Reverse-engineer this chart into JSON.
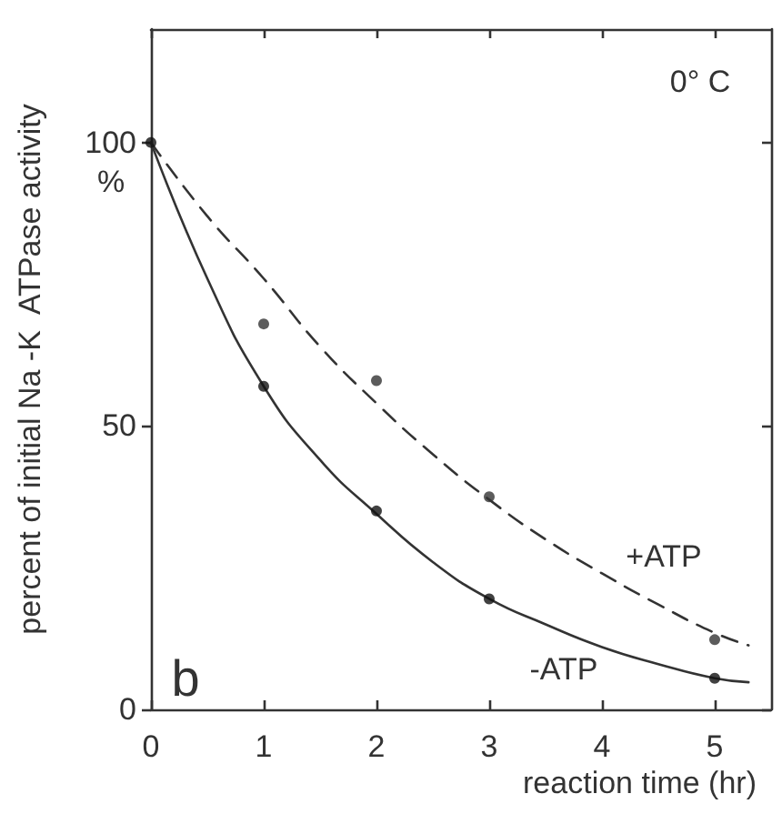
{
  "chart_data": {
    "type": "scatter",
    "xlabel": "reaction time (hr)",
    "ylabel": "percent of initial Na -K  ATPase activity",
    "annotations": [
      "%",
      "0° C",
      "b",
      "+ATP",
      "-ATP"
    ],
    "series": [
      {
        "type": "line",
        "color": "#333333",
        "line_style": "solid",
        "marker": "none",
        "x": [
          0,
          0.5,
          1,
          1.5,
          2,
          2.5,
          3,
          3.5,
          4,
          4.5,
          5,
          5.3
        ],
        "values": [
          100,
          76,
          57,
          44,
          34.5,
          26,
          19.5,
          15,
          11,
          8,
          5.5,
          4.8
        ]
      },
      {
        "type": "line",
        "color": "#333333",
        "line_style": "dashed",
        "marker": "none",
        "x": [
          0,
          0.5,
          1,
          1.5,
          2,
          2.5,
          3,
          3.5,
          4,
          4.5,
          5,
          5.3
        ],
        "values": [
          100,
          87,
          76,
          64,
          54,
          45,
          37,
          30,
          24,
          18.5,
          13.5,
          11.3
        ]
      },
      {
        "color": "#111111",
        "marker": "circle",
        "x": [
          0,
          1,
          2,
          3,
          5
        ],
        "values": [
          100,
          57,
          35,
          19.5,
          5.5
        ]
      },
      {
        "color": "#333333",
        "marker": "circle",
        "x": [
          1,
          2,
          3,
          5
        ],
        "values": [
          68,
          58,
          37.5,
          12.3
        ]
      }
    ],
    "xlim": [
      0,
      5.5
    ],
    "xticks": [
      0,
      1,
      2,
      3,
      4,
      5
    ],
    "ylim": [
      0,
      120
    ],
    "yticks": [
      0,
      50,
      100
    ],
    "grid": false
  }
}
